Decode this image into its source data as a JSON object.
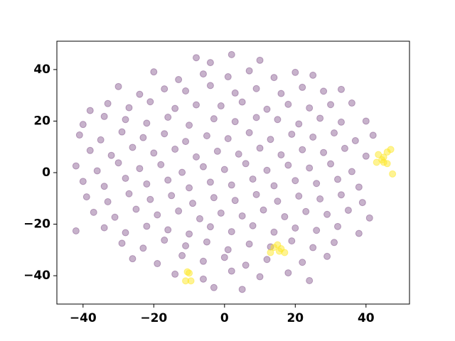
{
  "chart_data": {
    "type": "scatter",
    "xlim": [
      -47.4,
      52.3
    ],
    "ylim": [
      -51,
      51
    ],
    "xticks": [
      {
        "value": -40,
        "label": "−40"
      },
      {
        "value": -20,
        "label": "−20"
      },
      0,
      20,
      40
    ],
    "yticks": [
      {
        "value": -40,
        "label": "−40"
      },
      {
        "value": -20,
        "label": "−20"
      },
      0,
      20,
      40
    ],
    "grid": false,
    "series": [
      {
        "color": "#440154",
        "opacity": 0.3,
        "x": [
          -8,
          -4,
          2,
          10,
          -20,
          -13,
          -6,
          1,
          7,
          14,
          20,
          25,
          -30,
          -24,
          -17,
          -11,
          -4,
          3,
          9,
          16,
          22,
          28,
          33,
          -38,
          -33,
          -27,
          -21,
          -14,
          -8,
          -1,
          5,
          12,
          18,
          24,
          30,
          36,
          -40,
          -34,
          -28,
          -22,
          -16,
          -10,
          -3,
          3,
          9,
          15,
          21,
          27,
          33,
          40,
          -41,
          -35,
          -29,
          -23,
          -17,
          -11,
          -5,
          1,
          7,
          13,
          19,
          25,
          31,
          37,
          42,
          -38,
          -32,
          -26,
          -20,
          -14,
          -8,
          -2,
          4,
          10,
          16,
          22,
          28,
          34,
          40,
          -42,
          -36,
          -30,
          -24,
          -18,
          -12,
          -6,
          0,
          6,
          12,
          18,
          24,
          30,
          36,
          -40,
          -34,
          -28,
          -22,
          -16,
          -10,
          -4,
          2,
          8,
          14,
          20,
          26,
          32,
          38,
          -39,
          -33,
          -27,
          -21,
          -15,
          -9,
          -3,
          3,
          9,
          15,
          21,
          27,
          33,
          39,
          -37,
          -31,
          -25,
          -19,
          -13,
          -7,
          -1,
          5,
          11,
          17,
          23,
          29,
          35,
          41,
          -42,
          -34,
          -28,
          -22,
          -16,
          -10,
          -4,
          2,
          8,
          14,
          20,
          26,
          32,
          38,
          -29,
          -23,
          -17,
          -11,
          -5,
          1,
          7,
          13,
          19,
          25,
          31,
          -26,
          -19,
          -12,
          -6,
          0,
          6,
          12,
          22,
          29,
          -14,
          -6,
          2,
          10,
          18,
          24,
          -3,
          5
        ],
        "values": [
          44.6,
          42.7,
          45.8,
          43.6,
          39.1,
          36.1,
          38.3,
          37.2,
          39.5,
          36.9,
          38.9,
          37.8,
          33.4,
          30.4,
          32.5,
          31.7,
          33.8,
          30.9,
          32.6,
          30.7,
          33.1,
          31.6,
          32.3,
          24.1,
          26.8,
          25.2,
          27.5,
          24.9,
          26.3,
          25.9,
          27.4,
          24.6,
          26.5,
          25.1,
          26.4,
          27.0,
          18.7,
          21.8,
          20.6,
          19.2,
          21.5,
          18.4,
          20.9,
          19.8,
          21.4,
          20.6,
          18.9,
          21.1,
          19.6,
          20.0,
          14.6,
          12.7,
          15.8,
          13.6,
          15.1,
          12.1,
          14.3,
          13.2,
          15.5,
          12.9,
          14.9,
          13.8,
          15.4,
          12.4,
          14.5,
          8.6,
          6.7,
          9.8,
          7.6,
          9.1,
          6.1,
          8.3,
          7.2,
          9.5,
          6.9,
          8.9,
          7.8,
          9.4,
          6.4,
          2.6,
          0.7,
          3.8,
          1.6,
          3.1,
          0.1,
          2.3,
          1.2,
          3.5,
          0.9,
          2.9,
          1.8,
          3.4,
          0.4,
          -3.4,
          -5.3,
          -2.2,
          -4.4,
          -2.9,
          -5.9,
          -3.7,
          -4.8,
          -2.5,
          -5.1,
          -3.1,
          -4.2,
          -2.6,
          -5.6,
          -9.4,
          -11.3,
          -8.2,
          -10.4,
          -8.9,
          -11.9,
          -9.7,
          -10.8,
          -8.5,
          -11.1,
          -9.1,
          -10.2,
          -8.6,
          -11.6,
          -15.4,
          -17.3,
          -14.2,
          -16.4,
          -14.9,
          -17.9,
          -15.7,
          -16.8,
          -14.5,
          -17.1,
          -15.1,
          -16.2,
          -14.6,
          -17.6,
          -22.6,
          -21.4,
          -23.3,
          -20.8,
          -22.2,
          -23.8,
          -21.0,
          -22.9,
          -20.6,
          -23.1,
          -21.5,
          -22.4,
          -20.9,
          -23.6,
          -27.4,
          -29.3,
          -26.2,
          -28.4,
          -26.9,
          -29.9,
          -27.7,
          -28.8,
          -26.5,
          -29.1,
          -27.1,
          -33.4,
          -35.3,
          -32.2,
          -34.4,
          -32.9,
          -35.9,
          -33.7,
          -34.8,
          -32.5,
          -39.4,
          -41.3,
          -38.2,
          -40.4,
          -38.9,
          -41.9,
          -44.6,
          -45.3
        ]
      },
      {
        "color": "#fde725",
        "opacity": 0.5,
        "x": [
          43,
          44.5,
          46,
          45,
          47,
          46,
          43.5,
          47.5,
          45,
          14,
          15.5,
          17,
          16,
          13,
          15,
          -10,
          -9.5,
          -11,
          -10.5
        ],
        "values": [
          4,
          5,
          3.5,
          6,
          9,
          8,
          7,
          -0.5,
          4,
          -29,
          -30.5,
          -31,
          -29.5,
          -31,
          -28,
          -39,
          -42,
          -42,
          -38.5
        ]
      }
    ]
  }
}
